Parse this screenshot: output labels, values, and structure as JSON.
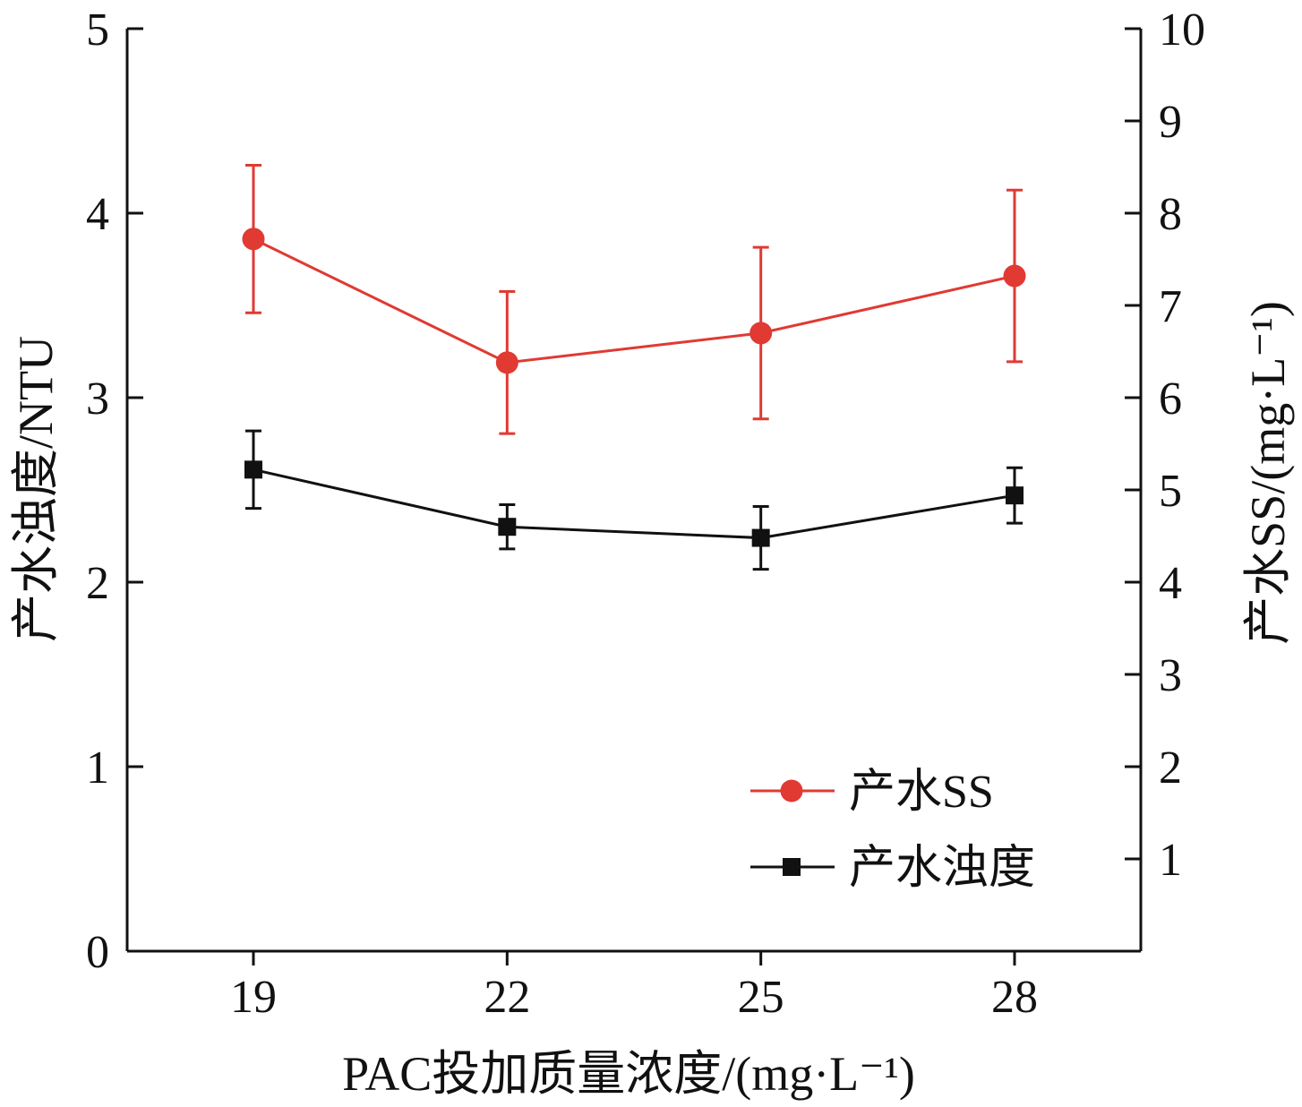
{
  "chart_data": {
    "type": "line",
    "title": "",
    "xlabel": "PAC投加质量浓度/(mg·L⁻¹)",
    "ylabel_left": "产水浊度/NTU",
    "ylabel_right": "产水SS/(mg·L⁻¹)",
    "categories": [
      "19",
      "22",
      "25",
      "28"
    ],
    "x": [
      19,
      22,
      25,
      28
    ],
    "ylim_left": [
      0,
      5
    ],
    "ylim_right": [
      0,
      10
    ],
    "yticks_left": [
      "0",
      "1",
      "2",
      "3",
      "4",
      "5"
    ],
    "yticks_right": [
      "1",
      "2",
      "3",
      "4",
      "5",
      "6",
      "7",
      "8",
      "9",
      "10"
    ],
    "grid": false,
    "legend_position": "bottom-right",
    "series": [
      {
        "name": "产水SS",
        "axis": "right",
        "color": "#e03a33",
        "marker": "circle",
        "values": [
          7.72,
          6.38,
          6.7,
          7.32
        ],
        "error": [
          0.8,
          0.77,
          0.93,
          0.93
        ]
      },
      {
        "name": "产水浊度",
        "axis": "left",
        "color": "#111111",
        "marker": "square",
        "values": [
          2.61,
          2.3,
          2.24,
          2.47
        ],
        "error": [
          0.21,
          0.12,
          0.17,
          0.15
        ]
      }
    ]
  }
}
